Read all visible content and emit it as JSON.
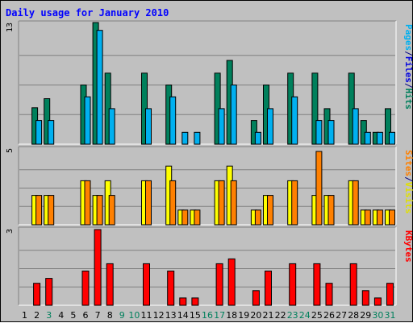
{
  "chart_data": {
    "type": "bar",
    "title": "Daily usage for January 2010",
    "categories": [
      "1",
      "2",
      "3",
      "4",
      "5",
      "6",
      "7",
      "8",
      "9",
      "10",
      "11",
      "12",
      "13",
      "14",
      "15",
      "16",
      "17",
      "18",
      "19",
      "20",
      "21",
      "22",
      "23",
      "24",
      "25",
      "26",
      "27",
      "28",
      "29",
      "30",
      "31"
    ],
    "weekend_days": [
      "3",
      "9",
      "10",
      "16",
      "17",
      "23",
      "24",
      "30",
      "31"
    ],
    "panels": [
      {
        "id": "top",
        "ymax": 13,
        "ymax_label": "13",
        "series": [
          {
            "name": "Pages",
            "color": "#00805c",
            "values": [
              0,
              4,
              5,
              0,
              0,
              6.5,
              13.5,
              7.8,
              0,
              0,
              7.8,
              0,
              6.5,
              0,
              0,
              0,
              7.8,
              9.2,
              0,
              2.6,
              6.5,
              0,
              7.8,
              0,
              7.8,
              3.9,
              0,
              7.8,
              2.6,
              1.3,
              3.9
            ]
          },
          {
            "name": "Files",
            "color": "#00b0f0",
            "values": [
              0,
              2.6,
              2.6,
              0,
              0,
              5.2,
              12.5,
              3.9,
              0,
              0,
              3.9,
              0,
              5.2,
              1.3,
              1.3,
              0,
              3.9,
              6.5,
              0,
              1.3,
              3.9,
              0,
              5.2,
              0,
              2.6,
              2.6,
              0,
              3.9,
              1.3,
              1.3,
              1.3
            ]
          }
        ],
        "axis_labels": [
          {
            "text": "Pages",
            "color": "#00b0f0"
          },
          {
            "text": "/",
            "color": "#000080"
          },
          {
            "text": "Files",
            "color": "#0000e0"
          },
          {
            "text": "/",
            "color": "#000080"
          },
          {
            "text": "Hits",
            "color": "#00805c"
          }
        ]
      },
      {
        "id": "mid",
        "ymax": 5,
        "ymax_label": "5",
        "series": [
          {
            "name": "Visits",
            "color": "#ffff00",
            "values": [
              0,
              2,
              2,
              0,
              0,
              3,
              2,
              3,
              0,
              0,
              3,
              0,
              4,
              1,
              1,
              0,
              3,
              4,
              0,
              1,
              2,
              0,
              3,
              0,
              2,
              2,
              0,
              3,
              1,
              1,
              1
            ]
          },
          {
            "name": "Sites",
            "color": "#ff8000",
            "values": [
              0,
              2,
              2,
              0,
              0,
              3,
              2,
              2,
              0,
              0,
              3,
              0,
              3,
              1,
              1,
              0,
              3,
              3,
              0,
              1,
              2,
              0,
              3,
              0,
              5,
              2,
              0,
              3,
              1,
              1,
              1
            ]
          }
        ],
        "axis_labels": [
          {
            "text": "Sites",
            "color": "#ff8000"
          },
          {
            "text": "/",
            "color": "#000080"
          },
          {
            "text": "Visits",
            "color": "#e0e000"
          }
        ]
      },
      {
        "id": "bot",
        "ymax": 3,
        "ymax_label": "3",
        "series": [
          {
            "name": "KBytes",
            "color": "#ff0000",
            "values": [
              0,
              0.9,
              1.1,
              0,
              0,
              1.4,
              3.1,
              1.7,
              0,
              0,
              1.7,
              0,
              1.4,
              0.3,
              0.3,
              0,
              1.7,
              1.9,
              0,
              0.6,
              1.4,
              0,
              1.7,
              0,
              1.7,
              0.9,
              0,
              1.7,
              0.6,
              0.3,
              0.9
            ]
          }
        ],
        "axis_labels": [
          {
            "text": "KBytes",
            "color": "#ff0000"
          }
        ]
      }
    ],
    "colors": {
      "background": "#c0c0c0",
      "title": "#0000ff",
      "weekday_label": "#000000",
      "weekend_label": "#00805c",
      "gridline": "#808080",
      "bar_outline": "#000000"
    }
  }
}
